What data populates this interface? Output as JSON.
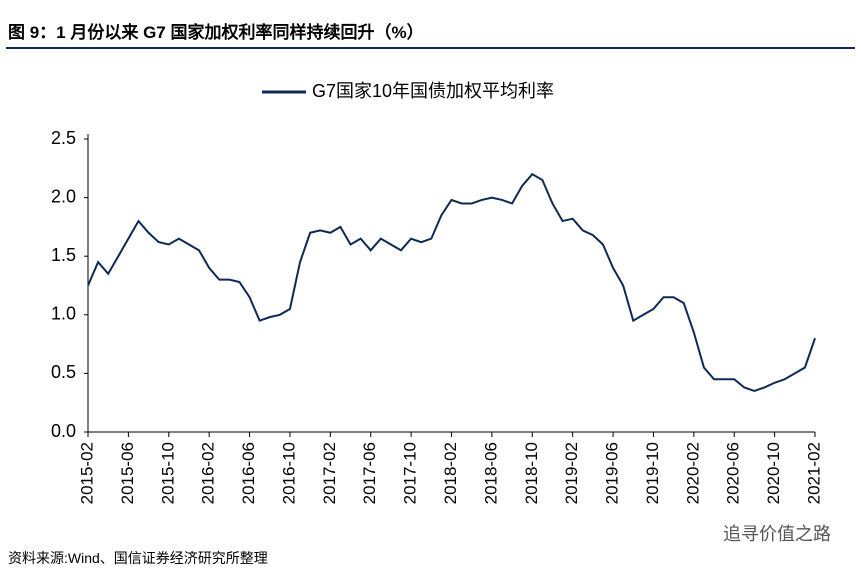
{
  "header": {
    "title": "图 9：1 月份以来 G7 国家加权利率同样持续回升（%）"
  },
  "chart_data": {
    "type": "line",
    "x": [
      "2015-02",
      null,
      null,
      null,
      "2015-06",
      null,
      null,
      null,
      "2015-10",
      null,
      null,
      null,
      "2016-02",
      null,
      null,
      null,
      "2016-06",
      null,
      null,
      null,
      "2016-10",
      null,
      null,
      null,
      "2017-02",
      null,
      null,
      null,
      "2017-06",
      null,
      null,
      null,
      "2017-10",
      null,
      null,
      null,
      "2018-02",
      null,
      null,
      null,
      "2018-06",
      null,
      null,
      null,
      "2018-10",
      null,
      null,
      null,
      "2019-02",
      null,
      null,
      null,
      "2019-06",
      null,
      null,
      null,
      "2019-10",
      null,
      null,
      null,
      "2020-02",
      null,
      null,
      null,
      "2020-06",
      null,
      null,
      null,
      "2020-10",
      null,
      null,
      null,
      "2021-02"
    ],
    "series": [
      {
        "name": "G7国家10年国债加权平均利率",
        "color": "#0d2a55",
        "values": [
          1.25,
          1.45,
          1.35,
          1.5,
          1.65,
          1.8,
          1.7,
          1.62,
          1.6,
          1.65,
          1.6,
          1.55,
          1.4,
          1.3,
          1.3,
          1.28,
          1.15,
          0.95,
          0.98,
          1.0,
          1.05,
          1.45,
          1.7,
          1.72,
          1.7,
          1.75,
          1.6,
          1.65,
          1.55,
          1.65,
          1.6,
          1.55,
          1.65,
          1.62,
          1.65,
          1.85,
          1.98,
          1.95,
          1.95,
          1.98,
          2.0,
          1.98,
          1.95,
          2.1,
          2.2,
          2.15,
          1.95,
          1.8,
          1.82,
          1.72,
          1.68,
          1.6,
          1.4,
          1.25,
          0.95,
          1.0,
          1.05,
          1.15,
          1.15,
          1.1,
          0.85,
          0.55,
          0.45,
          0.45,
          0.45,
          0.38,
          0.35,
          0.38,
          0.42,
          0.45,
          0.5,
          0.55,
          0.8
        ]
      }
    ],
    "ylim": [
      0,
      2.5
    ],
    "yticks": [
      {
        "value": 0,
        "label": "0.0"
      },
      0.5,
      {
        "value": 1,
        "label": "1.0"
      },
      1.5,
      {
        "value": 2,
        "label": "2.0"
      },
      2.5
    ],
    "legend": "top"
  },
  "footer": {
    "source": "资料来源:Wind、国信证券经济研究所整理",
    "watermark": "追寻价值之路"
  }
}
